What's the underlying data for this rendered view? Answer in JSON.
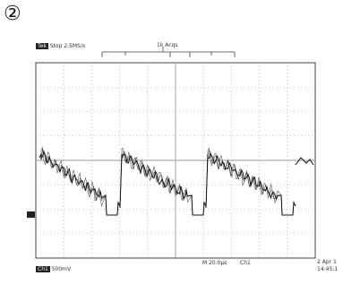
{
  "index_label": "②",
  "scope": {
    "header_left_tag": "Tek",
    "header_left_mode": "Stop",
    "header_left_info": "2.5MS/s",
    "header_center_info": "1k Acqs",
    "channel_marker": "1",
    "footer_channel_tag": "Ch1",
    "footer_volts": "500mV",
    "footer_time": "M 20.0µs",
    "footer_trigger": "Ch1",
    "footer_date_line1": "2 Apr 1",
    "footer_date_line2": "14:45:1",
    "colors": {
      "trace": "#111111",
      "grid": "#9a9a9a",
      "frame": "#444444"
    },
    "trace_data": {
      "cycles": 3,
      "shape": "sawtooth-decay-with-negative-notch",
      "noise": "high-frequency ringing"
    }
  }
}
